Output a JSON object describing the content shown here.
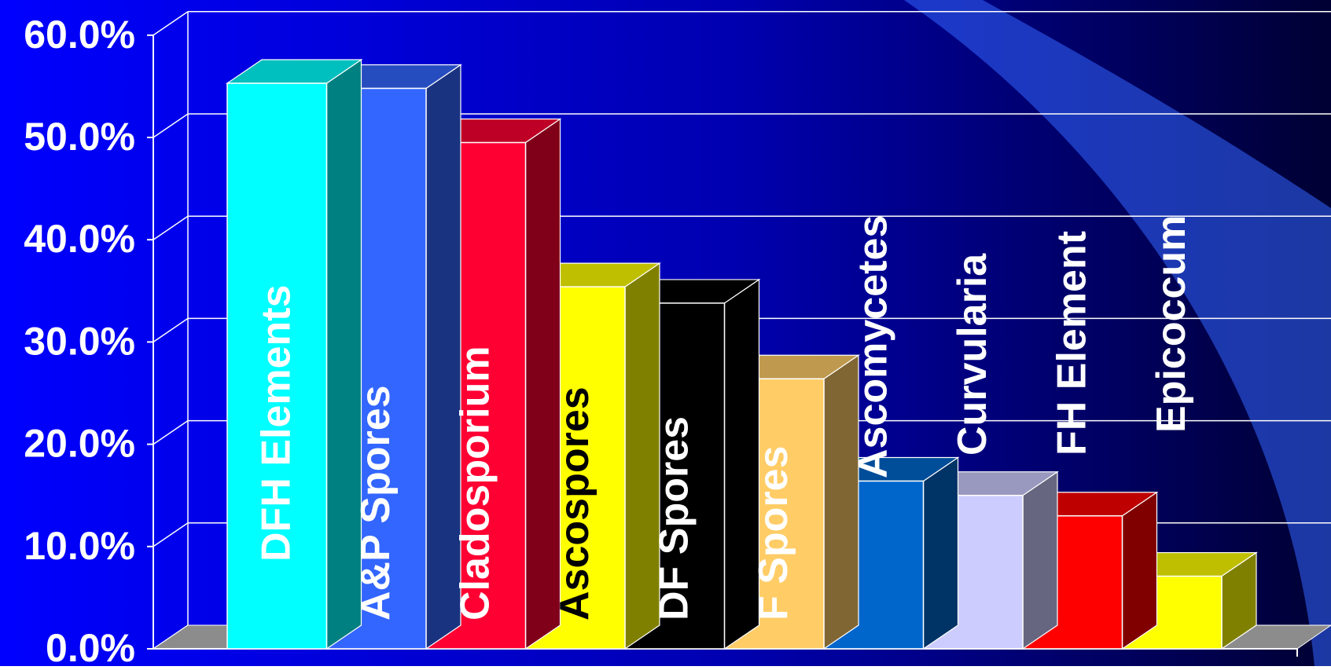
{
  "chart_data": {
    "type": "bar",
    "title": "",
    "xlabel": "",
    "ylabel": "",
    "ylim": [
      0,
      60
    ],
    "y_ticks": [
      {
        "value": 0,
        "label": "0.0%"
      },
      {
        "value": 10,
        "label": "10.0%"
      },
      {
        "value": 20,
        "label": "20.0%"
      },
      {
        "value": 30,
        "label": "30.0%"
      },
      {
        "value": 40,
        "label": "40.0%"
      },
      {
        "value": 50,
        "label": "50.0%"
      },
      {
        "value": 60,
        "label": "60.0%"
      }
    ],
    "grid": true,
    "legend": "none",
    "categories": [
      "DFH Elements",
      "A&P Spores",
      "Cladosporium",
      "Ascospores",
      "DF Spores",
      "F Spores",
      "Ascomycetes",
      "Curvularia",
      "FH Element",
      "Epicoccum"
    ],
    "values": [
      55.3,
      54.8,
      49.5,
      35.4,
      33.8,
      26.4,
      16.4,
      15.0,
      13.0,
      7.1
    ],
    "colors": [
      "#00ffff",
      "#3366ff",
      "#ff0033",
      "#ffff00",
      "#000000",
      "#ffcc66",
      "#0066cc",
      "#ccccff",
      "#ff0000",
      "#ffff00"
    ],
    "label_colors": [
      "#ffffff",
      "#ffffff",
      "#ffffff",
      "#000000",
      "#ffffff",
      "#ffffff",
      "#ffffff",
      "#ffffff",
      "#ffffff",
      "#ffffff"
    ]
  },
  "theme": {
    "background_start": "#0000ff",
    "background_end": "#000033",
    "gridline_color": "#ffffff",
    "text_color": "#ffffff",
    "floor_color": "#8c8c8c",
    "swoosh_color": "#3366ff"
  }
}
